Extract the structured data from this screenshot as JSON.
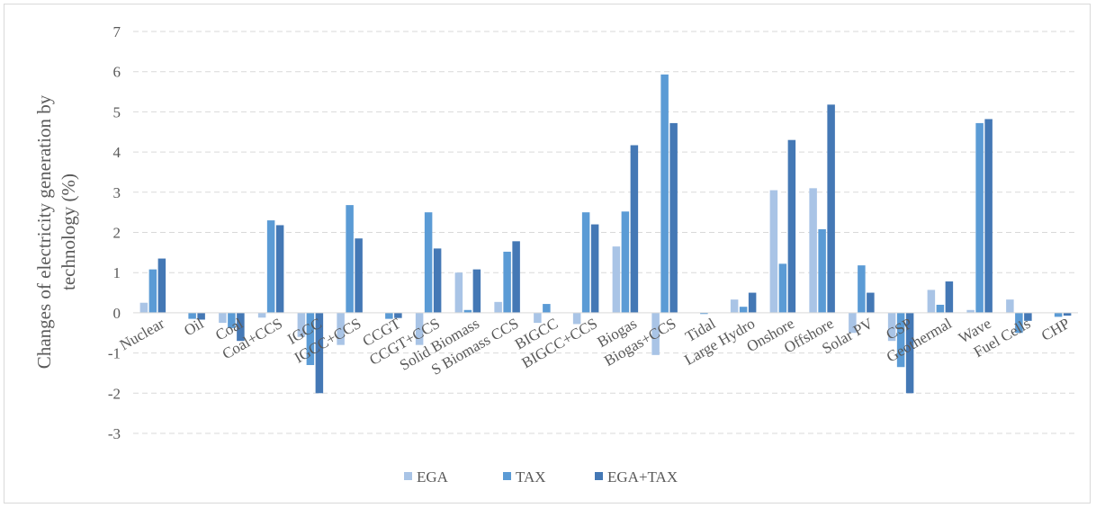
{
  "chart_data": {
    "type": "bar",
    "ylabel": "Changes of electricity generation by technology (%)",
    "ylabel_lines": [
      "Changes of electricity generation by",
      "technology  (%)"
    ],
    "ylim": [
      -3,
      7
    ],
    "yticks": [
      -3,
      -2,
      -1,
      0,
      1,
      2,
      3,
      4,
      5,
      6,
      7
    ],
    "grid": true,
    "legend_position": "bottom",
    "categories": [
      "Nuclear",
      "Oil",
      "Coal",
      "Coal+CCS",
      "IGCC",
      "IGCC+CCS",
      "CCGT",
      "CCGT+CCS",
      "Solid Biomass",
      "S Biomass CCS",
      "BIGCC",
      "BIGCC+CCS",
      "Biogas",
      "Biogas+CCS",
      "Tidal",
      "Large Hydro",
      "Onshore",
      "Offshore",
      "Solar PV",
      "CSP",
      "Geothermal",
      "Wave",
      "Fuel Cells",
      "CHP"
    ],
    "series": [
      {
        "name": "EGA",
        "color": "#a9c4e6",
        "values": [
          0.25,
          0.0,
          -0.25,
          -0.12,
          -0.6,
          -0.8,
          0.0,
          -0.8,
          1.0,
          0.27,
          -0.25,
          -0.28,
          1.65,
          -1.05,
          0.0,
          0.33,
          3.05,
          3.1,
          -0.5,
          -0.7,
          0.57,
          0.07,
          0.33,
          0.0
        ]
      },
      {
        "name": "TAX",
        "color": "#5b9bd5",
        "values": [
          1.08,
          -0.15,
          -0.38,
          2.3,
          -1.3,
          2.68,
          -0.15,
          2.5,
          0.07,
          1.52,
          0.22,
          2.5,
          2.52,
          5.93,
          -0.03,
          0.15,
          1.22,
          2.08,
          1.18,
          -1.35,
          0.2,
          4.72,
          -0.5,
          -0.1
        ]
      },
      {
        "name": "EGA+TAX",
        "color": "#4478b5",
        "values": [
          1.35,
          -0.17,
          -0.7,
          2.18,
          -2.0,
          1.85,
          -0.13,
          1.6,
          1.08,
          1.78,
          0.0,
          2.2,
          4.17,
          4.72,
          0.0,
          0.5,
          4.3,
          5.18,
          0.5,
          -2.0,
          0.78,
          4.82,
          -0.2,
          -0.07
        ]
      }
    ]
  }
}
